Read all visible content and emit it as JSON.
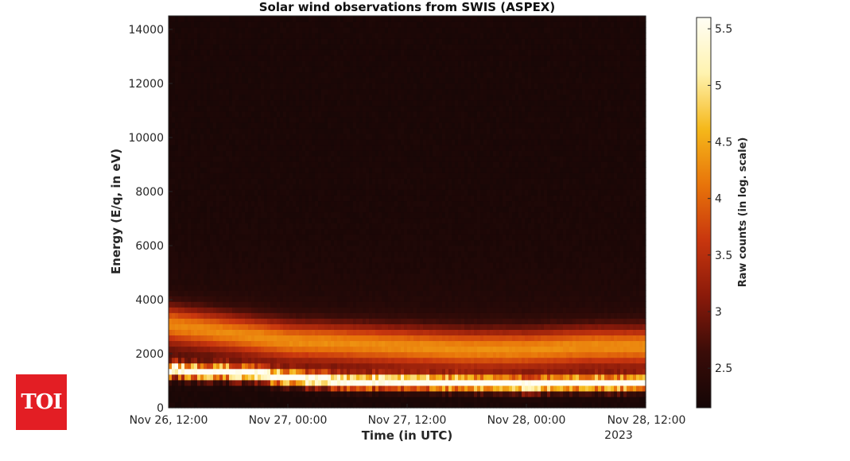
{
  "logo": {
    "text": "TOI"
  },
  "chart_data": {
    "type": "heatmap",
    "title": "Solar wind observations from SWIS (ASPEX)",
    "xlabel": "Time (in UTC)",
    "ylabel": "Energy (E/q, in eV)",
    "x_ticks": [
      "Nov 26, 12:00",
      "Nov 27, 00:00",
      "Nov 27, 12:00",
      "Nov 28, 00:00",
      "Nov 28, 12:00"
    ],
    "x_tick_suffix": "2023",
    "xlim": [
      "2023-11-26T12:00",
      "2023-11-28T12:00"
    ],
    "y_ticks": [
      0,
      2000,
      4000,
      6000,
      8000,
      10000,
      12000,
      14000
    ],
    "ylim": [
      0,
      14500
    ],
    "colorbar": {
      "label": "Raw counts (in log. scale)",
      "ticks": [
        2.5,
        3,
        3.5,
        4,
        4.5,
        5,
        5.5
      ],
      "range": [
        2.15,
        5.6
      ],
      "colormap": "afmhot",
      "colors": [
        "#140606",
        "#3a0c08",
        "#8a1a0a",
        "#c8360e",
        "#e8740a",
        "#f5b81a",
        "#fff3b0",
        "#fffef5"
      ]
    },
    "time_hours": [
      0,
      6,
      12,
      18,
      24,
      30,
      36,
      42,
      48
    ],
    "peak_energy_eV": [
      1400,
      1300,
      1100,
      950,
      950,
      900,
      850,
      900,
      900
    ],
    "ridge_energy_eV": [
      3100,
      2800,
      2500,
      2400,
      2300,
      2200,
      2200,
      2300,
      2300
    ]
  }
}
